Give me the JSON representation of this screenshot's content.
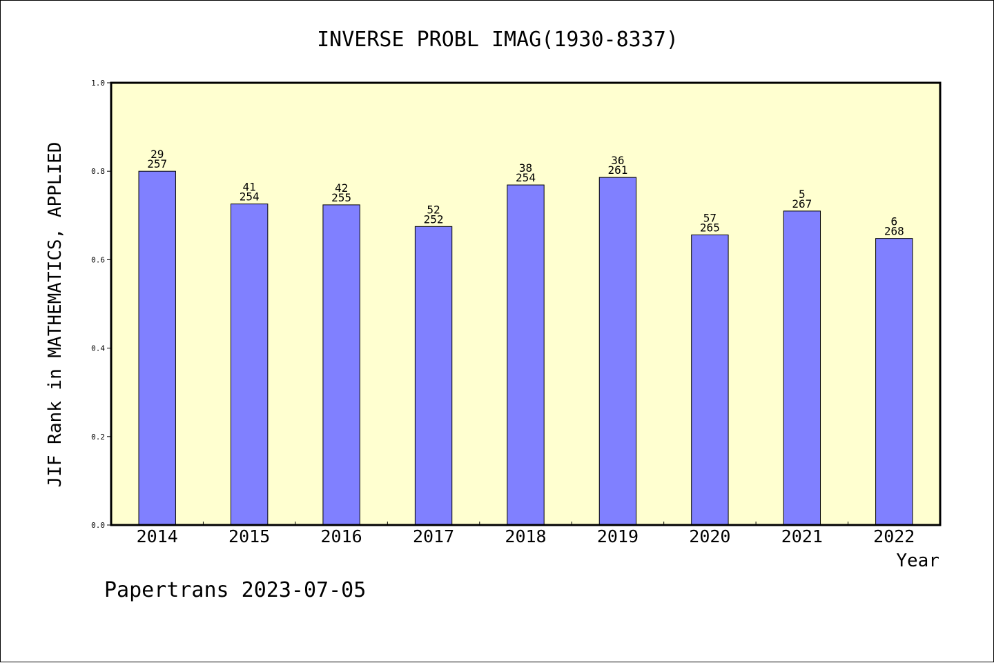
{
  "chart_data": {
    "type": "bar",
    "title": "INVERSE PROBL IMAG(1930-8337)",
    "xlabel": "Year",
    "ylabel": "JIF Rank in MATHEMATICS, APPLIED",
    "categories": [
      "2014",
      "2015",
      "2016",
      "2017",
      "2018",
      "2019",
      "2020",
      "2021",
      "2022"
    ],
    "values": [
      0.8,
      0.726,
      0.724,
      0.675,
      0.769,
      0.786,
      0.656,
      0.71,
      0.648
    ],
    "rank": [
      "29",
      "41",
      "42",
      "52",
      "38",
      "36",
      "57",
      "5",
      "6"
    ],
    "total": [
      "257",
      "254",
      "255",
      "252",
      "254",
      "261",
      "265",
      "267",
      "268"
    ],
    "ylim": [
      0.0,
      1.0
    ],
    "yticks": [
      "0.0",
      "0.2",
      "0.4",
      "0.6",
      "0.8",
      "1.0"
    ],
    "grid": false,
    "legend": "none",
    "colors": {
      "bar": "#8080ff",
      "plot_background": "#ffffd0",
      "axis": "#000000"
    }
  },
  "footer": {
    "text": "Papertrans 2023-07-05"
  }
}
